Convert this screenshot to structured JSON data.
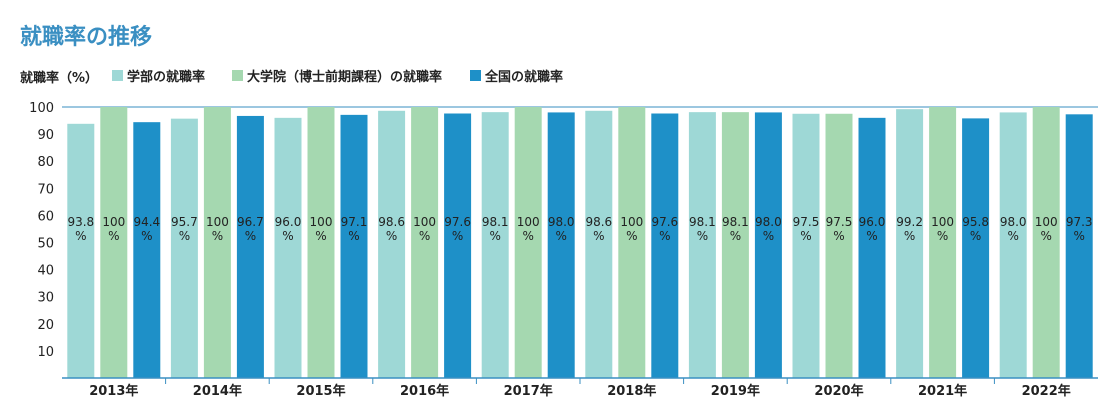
{
  "chart_data": {
    "type": "bar",
    "title": "就職率の推移",
    "ylabel": "就職率（%）",
    "xlabel": "",
    "categories": [
      "2013年",
      "2014年",
      "2015年",
      "2016年",
      "2017年",
      "2018年",
      "2019年",
      "2020年",
      "2021年",
      "2022年"
    ],
    "ylim": [
      0,
      100
    ],
    "yticks": [
      10,
      20,
      30,
      40,
      50,
      60,
      70,
      80,
      90,
      100
    ],
    "grid": false,
    "legend_position": "top-left",
    "series": [
      {
        "name": "学部の就職率",
        "color": "#9ed8d6",
        "values": [
          93.8,
          95.7,
          96.0,
          98.6,
          98.1,
          98.6,
          98.1,
          97.5,
          99.2,
          98.0
        ],
        "labels": [
          "93.8",
          "95.7",
          "96.0",
          "98.6",
          "98.1",
          "98.6",
          "98.1",
          "97.5",
          "99.2",
          "98.0"
        ]
      },
      {
        "name": "大学院（博士前期課程）の就職率",
        "color": "#a5d8b0",
        "values": [
          100,
          100,
          100,
          100,
          100,
          100,
          98.1,
          97.5,
          100,
          100
        ],
        "labels": [
          "100",
          "100",
          "100",
          "100",
          "100",
          "100",
          "98.1",
          "97.5",
          "100",
          "100"
        ]
      },
      {
        "name": "全国の就職率",
        "color": "#1e90c8",
        "values": [
          94.4,
          96.7,
          97.1,
          97.6,
          98.0,
          97.6,
          98.0,
          96.0,
          95.8,
          97.3
        ],
        "labels": [
          "94.4",
          "96.7",
          "97.1",
          "97.6",
          "98.0",
          "97.6",
          "98.0",
          "96.0",
          "95.8",
          "97.3"
        ]
      }
    ],
    "value_suffix": "%"
  },
  "colors": {
    "title": "#3a8fc2",
    "axis": "#3a8fc2",
    "text": "#222222"
  }
}
